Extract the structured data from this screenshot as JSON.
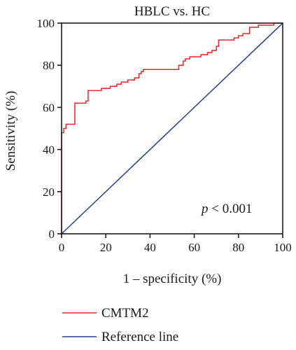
{
  "chart_data": {
    "type": "line",
    "title": "HBLC vs. HC",
    "xlabel": "1 – specificity (%)",
    "ylabel": "Sensitivity (%)",
    "xlim": [
      0,
      100
    ],
    "ylim": [
      0,
      100
    ],
    "xticks": [
      0,
      20,
      40,
      60,
      80,
      100
    ],
    "yticks": [
      0,
      20,
      40,
      60,
      80,
      100
    ],
    "grid": false,
    "legend_position": "bottom",
    "annotation": {
      "prefix": "p",
      "text": " < 0.001"
    },
    "series": [
      {
        "name": "CMTM2",
        "color": "#e8262a",
        "step": true,
        "x": [
          0,
          0,
          1,
          1,
          2,
          2,
          6,
          6,
          11,
          11,
          12,
          12,
          18,
          18,
          22,
          22,
          25,
          25,
          27,
          27,
          30,
          30,
          33,
          33,
          35,
          35,
          36,
          36,
          37,
          37,
          53,
          53,
          55,
          55,
          56,
          56,
          58,
          58,
          63,
          63,
          66,
          66,
          68,
          68,
          70,
          70,
          71,
          71,
          78,
          78,
          80,
          80,
          82,
          82,
          85,
          85,
          89,
          89,
          96,
          96,
          100
        ],
        "y": [
          0,
          48,
          48,
          50,
          50,
          52,
          52,
          62,
          62,
          63,
          63,
          68,
          68,
          69,
          69,
          70,
          70,
          71,
          71,
          72,
          72,
          73,
          73,
          74,
          74,
          76,
          76,
          77,
          77,
          78,
          78,
          80,
          80,
          82,
          82,
          83,
          83,
          84,
          84,
          85,
          85,
          86,
          86,
          87,
          87,
          89,
          89,
          92,
          92,
          93,
          93,
          94,
          94,
          95,
          95,
          98,
          98,
          99,
          99,
          100,
          100
        ]
      },
      {
        "name": "Reference line",
        "color": "#2a3c8e",
        "step": false,
        "x": [
          0,
          100
        ],
        "y": [
          0,
          100
        ]
      }
    ]
  }
}
